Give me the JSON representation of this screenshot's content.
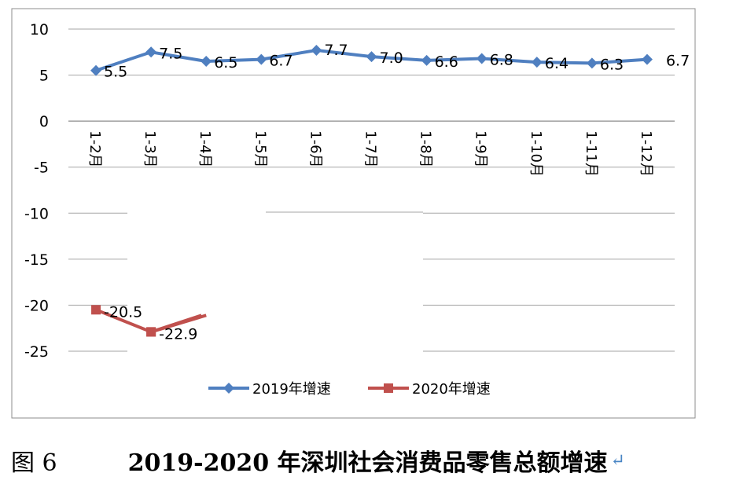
{
  "chart_data": {
    "type": "line",
    "categories": [
      "1-2月",
      "1-3月",
      "1-4月",
      "1-5月",
      "1-6月",
      "1-7月",
      "1-8月",
      "1-9月",
      "1-10月",
      "1-11月",
      "1-12月"
    ],
    "series": [
      {
        "name": "2019年增速",
        "color": "#4f7fc0",
        "marker": "diamond",
        "values": [
          5.5,
          7.5,
          6.5,
          6.7,
          7.7,
          7.0,
          6.6,
          6.8,
          6.4,
          6.3,
          6.7
        ],
        "labels": [
          "5.5",
          "7.5",
          "6.5",
          "6.7",
          "7.7",
          "7.0",
          "6.6",
          "6.8",
          "6.4",
          "6.3",
          "6.7"
        ]
      },
      {
        "name": "2020年增速",
        "color": "#c0504d",
        "marker": "square",
        "values": [
          -20.5,
          -22.9,
          -21.1,
          null,
          null,
          null,
          null,
          null,
          null,
          null,
          null
        ],
        "labels": [
          "-20.5",
          "-22.9",
          null,
          null,
          null,
          null,
          null,
          null,
          null,
          null,
          null
        ]
      }
    ],
    "yticks": [
      "10",
      "5",
      "0",
      "-5",
      "-10",
      "-15",
      "-20",
      "-25"
    ],
    "ylim": [
      -25,
      10
    ],
    "grid": true,
    "legend": "bottom"
  },
  "caption": {
    "figure_label": "图 6",
    "title": "2019-2020 年深圳社会消费品零售总额增速",
    "mark": "↵"
  }
}
